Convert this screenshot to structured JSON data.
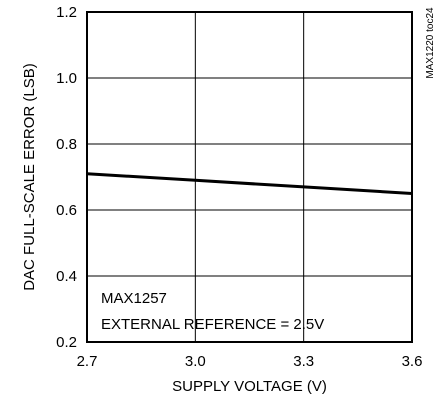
{
  "chart_data": {
    "type": "line",
    "xlabel": "SUPPLY VOLTAGE (V)",
    "ylabel": "DAC FULL-SCALE ERROR (LSB)",
    "xlim": [
      2.7,
      3.6
    ],
    "ylim": [
      0.2,
      1.2
    ],
    "x_ticks": [
      2.7,
      3.0,
      3.3,
      3.6
    ],
    "y_ticks": [
      0.2,
      0.4,
      0.6,
      0.8,
      1.0,
      1.2
    ],
    "x_tick_labels": [
      "2.7",
      "3.0",
      "3.3",
      "3.6"
    ],
    "y_tick_labels": [
      "0.2",
      "0.4",
      "0.6",
      "0.8",
      "1.0",
      "1.2"
    ],
    "grid": true,
    "series": [
      {
        "x": [
          2.7,
          3.0,
          3.3,
          3.6
        ],
        "y": [
          0.71,
          0.69,
          0.67,
          0.65
        ]
      }
    ],
    "annotations": [
      "MAX1257",
      "EXTERNAL REFERENCE = 2.5V"
    ],
    "side_note": "MAX1220 toc24"
  }
}
